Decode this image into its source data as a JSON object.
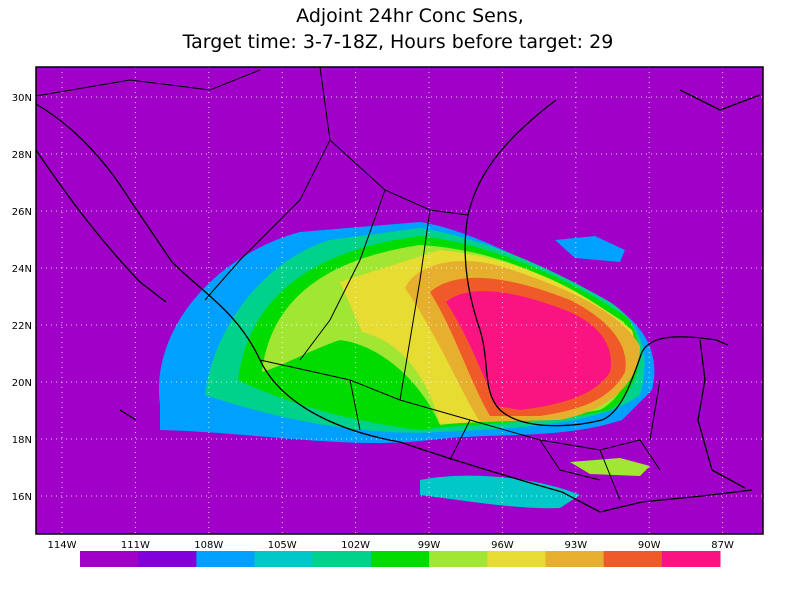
{
  "title": {
    "line1": "Adjoint 24hr Conc Sens,",
    "line2": "Target time: 3-7-18Z, Hours before target: 29"
  },
  "map": {
    "lon_labels": [
      "114W",
      "111W",
      "108W",
      "105W",
      "102W",
      "99W",
      "96W",
      "93W",
      "90W",
      "87W"
    ],
    "lat_labels": [
      "30N",
      "28N",
      "26N",
      "24N",
      "22N",
      "20N",
      "18N",
      "16N"
    ]
  },
  "colorbar": {
    "colors": [
      "#a000c8",
      "#8200dc",
      "#00a0ff",
      "#00c8c8",
      "#00d28c",
      "#00dc00",
      "#a0e632",
      "#e6dc32",
      "#e6af2d",
      "#f05a28",
      "#fa1482"
    ]
  }
}
